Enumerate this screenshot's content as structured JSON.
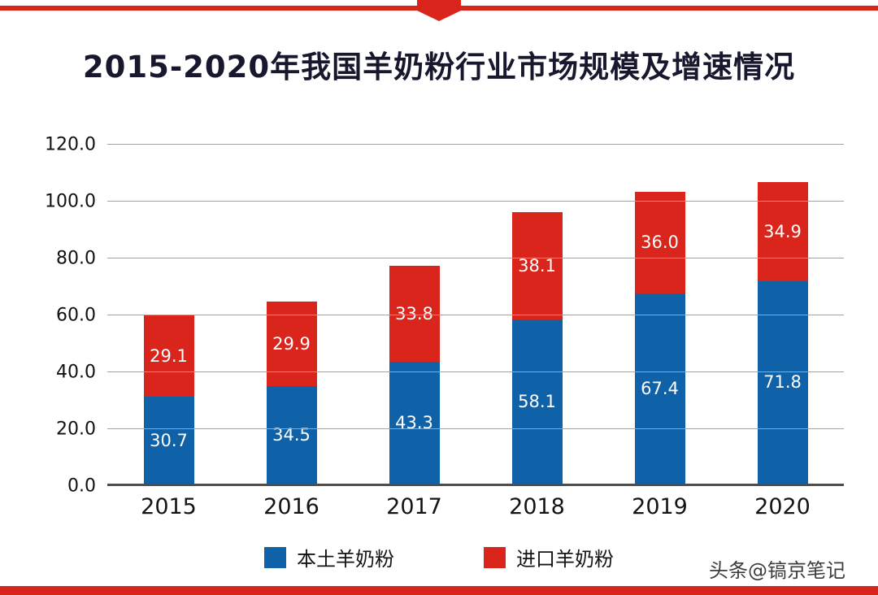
{
  "title": "2015-2020年我国羊奶粉行业市场规模及增速情况",
  "watermark": "头条@镐京笔记",
  "colors": {
    "accent": "#da251c",
    "domestic_blue": "#1062a8",
    "imported_red": "#da251c",
    "title_text": "#17172e",
    "grid": "#a3a3a3",
    "axis": "#4d4d4d"
  },
  "chart_data": {
    "type": "bar",
    "stacked": true,
    "title": "2015-2020年我国羊奶粉行业市场规模及增速情况",
    "categories": [
      "2015",
      "2016",
      "2017",
      "2018",
      "2019",
      "2020"
    ],
    "series": [
      {
        "name": "本土羊奶粉",
        "color": "#1062a8",
        "values": [
          30.7,
          34.5,
          43.3,
          58.1,
          67.4,
          71.8
        ]
      },
      {
        "name": "进口羊奶粉",
        "color": "#da251c",
        "values": [
          29.1,
          29.9,
          33.8,
          38.1,
          36.0,
          34.9
        ]
      }
    ],
    "ylim": [
      0,
      120
    ],
    "ytick_step": 20,
    "ytick_labels": [
      "0.0",
      "20.0",
      "40.0",
      "60.0",
      "80.0",
      "100.0",
      "120.0"
    ],
    "grid": true,
    "legend_position": "bottom"
  }
}
